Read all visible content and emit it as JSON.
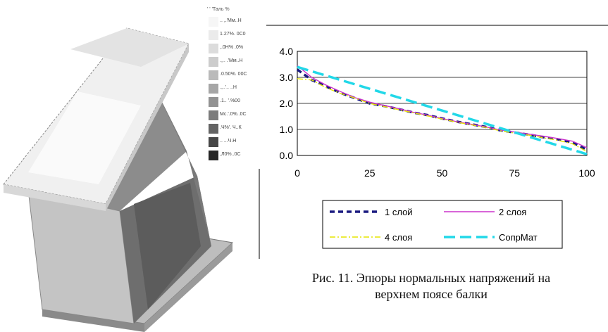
{
  "figure": {
    "caption_line1": "Рис. 11. Эпюры нормальных напряжений на",
    "caption_line2": "верхнем поясе балки"
  },
  "beam_scale": {
    "title": "' ' 'Таль %",
    "labels": [
      ".. ,.'Мм..Н",
      "1.27%. 0C0",
      ",.0Н% .0%",
      ".,.. .'Мм..Н",
      ".0.50%. 00C",
      ".,..'.. ..Н",
      ".1.. '.%00",
      "Мс.'.0%..0С",
      ".Ч%'. Ч..К",
      ".. ...Ч.Н",
      ",Л0%..0С"
    ],
    "colors": [
      "#f6f6f6",
      "#ebebeb",
      "#dcdcdc",
      "#cccccc",
      "#bababa",
      "#a6a6a6",
      "#929292",
      "#7c7c7c",
      "#646464",
      "#474747",
      "#262626"
    ]
  },
  "chart_data": {
    "type": "line",
    "xlim": [
      0,
      100
    ],
    "ylim": [
      0,
      4
    ],
    "xticks": [
      0,
      25,
      50,
      75,
      100
    ],
    "yticks": [
      0,
      1,
      2,
      3,
      4
    ],
    "xtick_labels": [
      "0",
      "25",
      "50",
      "75",
      "100"
    ],
    "ytick_labels": [
      "0.0",
      "1.0",
      "2.0",
      "3.0",
      "4.0"
    ],
    "grid": "horizontal",
    "legend_position": "bottom",
    "series": [
      {
        "name": "1 слой",
        "color": "#1a1a80",
        "style": "dashed",
        "x": [
          0,
          5,
          10,
          15,
          20,
          25,
          30,
          35,
          40,
          45,
          50,
          55,
          60,
          65,
          70,
          75,
          80,
          85,
          90,
          95,
          100
        ],
        "y": [
          3.3,
          2.9,
          2.65,
          2.4,
          2.2,
          2.0,
          1.9,
          1.78,
          1.65,
          1.55,
          1.42,
          1.3,
          1.2,
          1.1,
          0.97,
          0.88,
          0.8,
          0.7,
          0.62,
          0.5,
          0.22
        ]
      },
      {
        "name": "2 слоя",
        "color": "#cc33cc",
        "style": "solid",
        "x": [
          0,
          5,
          10,
          15,
          20,
          25,
          30,
          35,
          40,
          45,
          50,
          55,
          60,
          65,
          70,
          75,
          80,
          85,
          90,
          95,
          100
        ],
        "y": [
          3.45,
          3.0,
          2.7,
          2.45,
          2.22,
          2.05,
          1.92,
          1.8,
          1.66,
          1.55,
          1.42,
          1.3,
          1.2,
          1.1,
          0.98,
          0.9,
          0.82,
          0.74,
          0.65,
          0.55,
          0.3
        ]
      },
      {
        "name": "4 слоя",
        "color": "#e6e600",
        "style": "dashdot",
        "x": [
          0,
          5,
          10,
          15,
          20,
          25,
          30,
          35,
          40,
          45,
          50,
          55,
          60,
          65,
          70,
          75,
          80,
          85,
          90,
          95,
          100
        ],
        "y": [
          2.95,
          2.9,
          2.6,
          2.38,
          2.2,
          2.0,
          1.88,
          1.76,
          1.64,
          1.52,
          1.4,
          1.28,
          1.18,
          1.08,
          0.95,
          0.86,
          0.78,
          0.68,
          0.58,
          0.45,
          0.15
        ]
      },
      {
        "name": "СопрМат",
        "color": "#22d8e8",
        "style": "longdash",
        "x": [
          0,
          100
        ],
        "y": [
          3.4,
          0.05
        ]
      }
    ]
  }
}
